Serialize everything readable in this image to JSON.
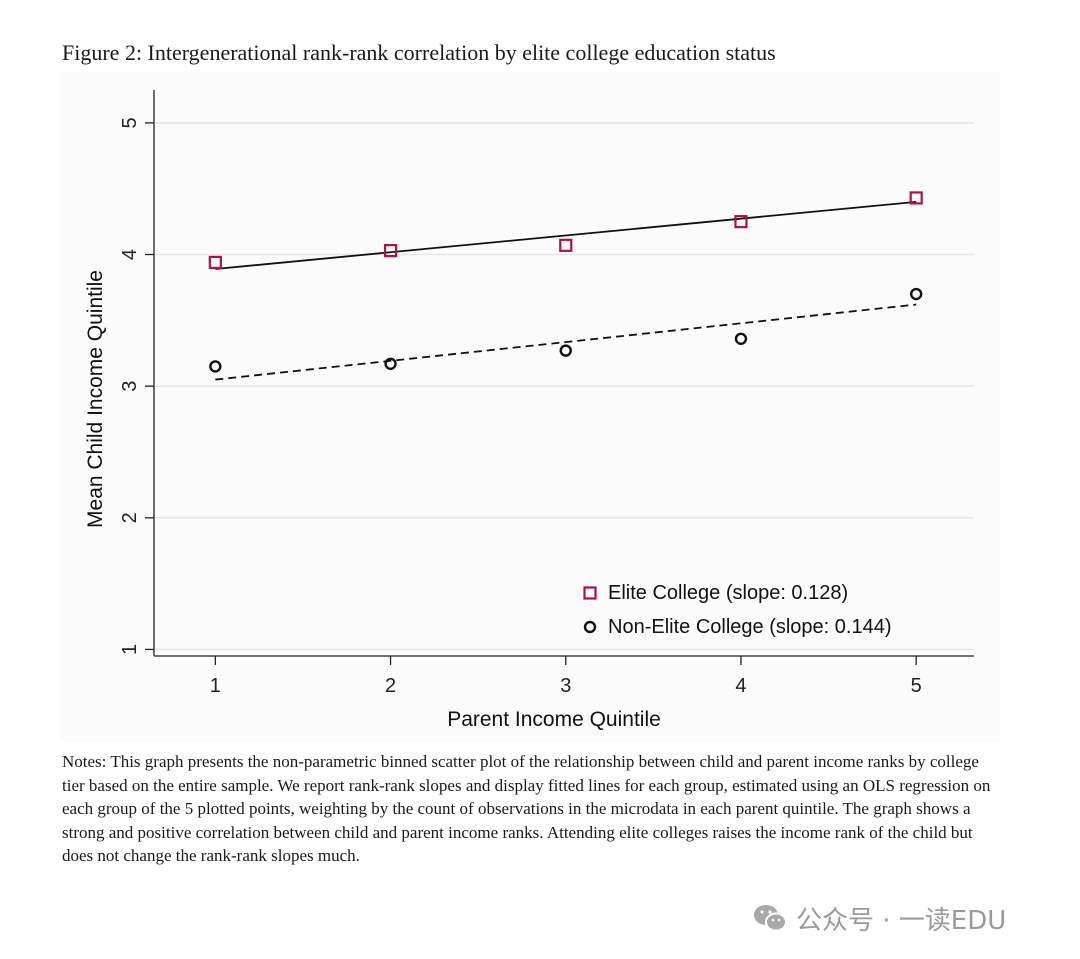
{
  "figure": {
    "title": "Figure 2: Intergenerational rank-rank correlation by elite college education status",
    "notes": "Notes: This graph presents the non-parametric binned scatter plot of the relationship between child and parent income ranks by college tier based on the entire sample. We report rank-rank slopes and display fitted lines for each group, estimated using an OLS regression on each group of the 5 plotted points, weighting by the count of observations in the microdata in each parent quintile. The graph shows a strong and positive correlation between child and parent income ranks. Attending elite colleges raises the income rank of the child but does not change the rank-rank slopes much."
  },
  "watermark": {
    "text": "公众号 · 一读EDU",
    "icon": "wechat-icon"
  },
  "chart_data": {
    "type": "scatter",
    "title": "",
    "xlabel": "Parent Income Quintile",
    "ylabel": "Mean Child Income Quintile",
    "x": [
      1,
      2,
      3,
      4,
      5
    ],
    "xlim": [
      0.65,
      5.33
    ],
    "ylim": [
      0.95,
      5.25
    ],
    "xticks": [
      "1",
      "2",
      "3",
      "4",
      "5"
    ],
    "yticks": [
      "1",
      "2",
      "3",
      "4",
      "5"
    ],
    "grid": true,
    "legend_position": "bottom-right",
    "series": [
      {
        "name": "Elite College (slope: 0.128)",
        "marker": "hollow-square",
        "color": "#b0123a",
        "values": [
          3.94,
          4.03,
          4.07,
          4.25,
          4.43
        ],
        "fit": {
          "style": "solid",
          "y_at_x1": 3.89,
          "y_at_x5": 4.4
        }
      },
      {
        "name": "Non-Elite College (slope: 0.144)",
        "marker": "hollow-circle",
        "color": "#111111",
        "values": [
          3.15,
          3.17,
          3.27,
          3.36,
          3.7
        ],
        "fit": {
          "style": "dashed",
          "y_at_x1": 3.05,
          "y_at_x5": 3.62
        }
      }
    ]
  }
}
